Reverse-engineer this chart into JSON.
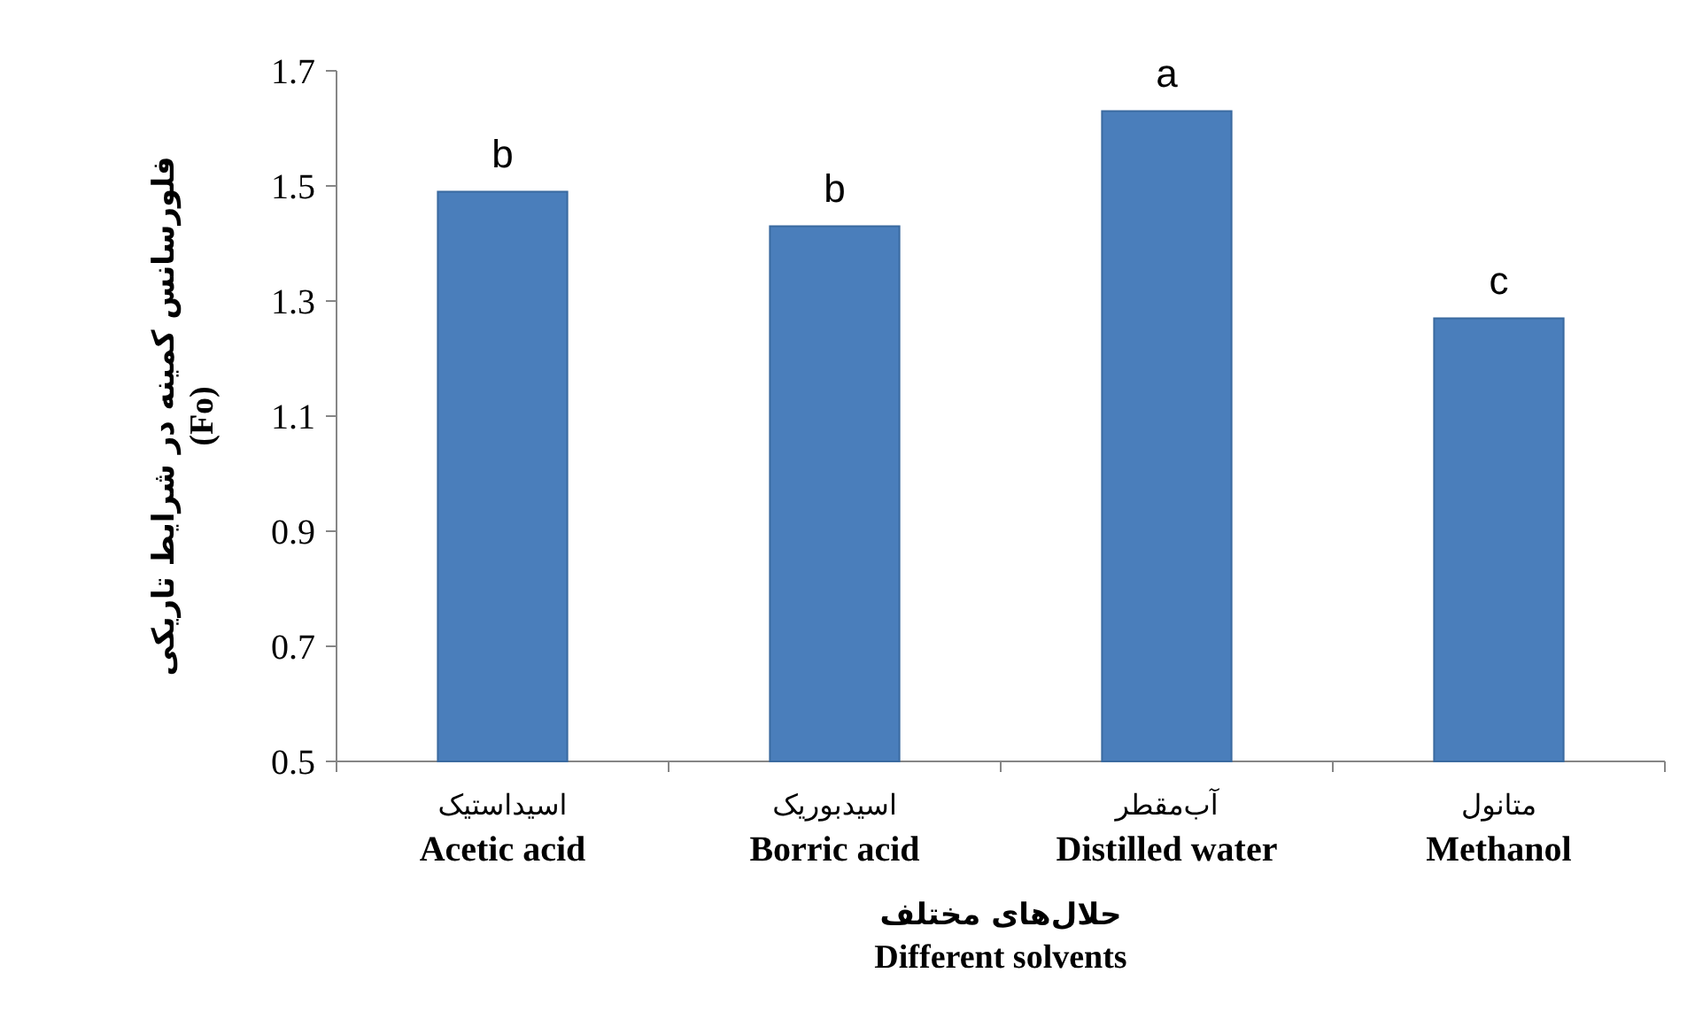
{
  "chart_data": {
    "type": "bar",
    "categories": [
      "اسیداستیک\nAcetic acid",
      "اسیدبوریک\nBorric acid",
      "آب‌مقطر\nDistilled water",
      "متانول\nMethanol"
    ],
    "values": [
      1.49,
      1.43,
      1.63,
      1.27
    ],
    "color": "#4a7ebb",
    "xlabel": "حلال‌های مختلف\nDifferent solvents",
    "ylabel": "فلورسانس کمینه در شرایط تاریکی\n(Fo)",
    "ylim": [
      0.5,
      1.7
    ],
    "yticks": [
      0.5,
      0.7,
      0.9,
      1.1,
      1.3,
      1.5,
      1.7
    ],
    "annotations": [
      {
        "text": "b",
        "x": "اسیداستیک\nAcetic acid",
        "y": 1.49
      },
      {
        "text": "b",
        "x": "اسیدبوریک\nBorric acid",
        "y": 1.43
      },
      {
        "text": "a",
        "x": "آب‌مقطر\nDistilled water",
        "y": 1.63
      },
      {
        "text": "c",
        "x": "متانول\nMethanol",
        "y": 1.27
      }
    ]
  }
}
